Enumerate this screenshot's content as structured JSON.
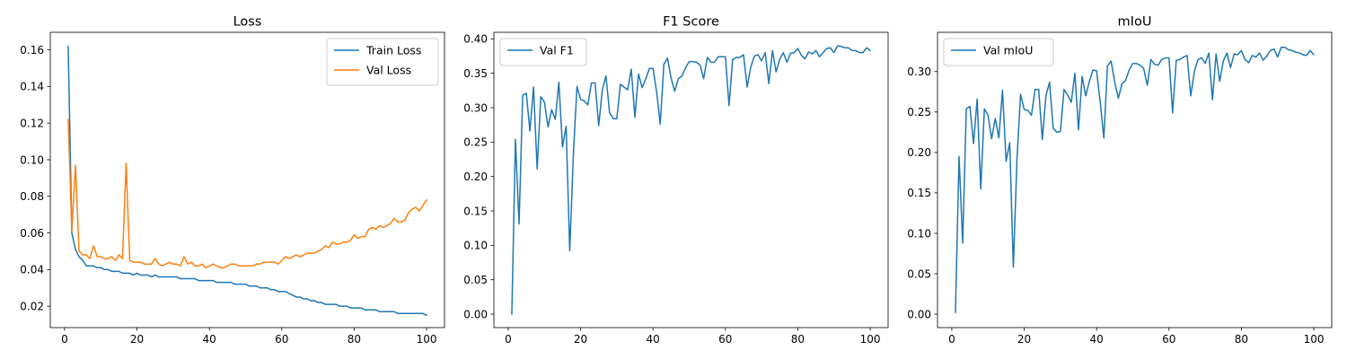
{
  "chart_data": [
    {
      "type": "line",
      "title": "Loss",
      "xlabel": "",
      "ylabel": "",
      "xlim": [
        -3.95,
        104.95
      ],
      "ylim": [
        0.0083,
        0.1696
      ],
      "xticks": [
        0,
        20,
        40,
        60,
        80,
        100
      ],
      "yticks": [
        0.02,
        0.04,
        0.06,
        0.08,
        0.1,
        0.12,
        0.14,
        0.16
      ],
      "ytick_labels": [
        "0.02",
        "0.04",
        "0.06",
        "0.08",
        "0.10",
        "0.12",
        "0.14",
        "0.16"
      ],
      "grid": false,
      "legend": "top-right",
      "series": [
        {
          "name": "Train Loss",
          "color": "#1f77b4",
          "x": [
            1,
            2,
            3,
            4,
            5,
            6,
            7,
            8,
            9,
            10,
            11,
            12,
            13,
            14,
            15,
            16,
            17,
            18,
            19,
            20,
            21,
            22,
            23,
            24,
            25,
            26,
            27,
            28,
            29,
            30,
            31,
            32,
            33,
            34,
            35,
            36,
            37,
            38,
            39,
            40,
            41,
            42,
            43,
            44,
            45,
            46,
            47,
            48,
            49,
            50,
            51,
            52,
            53,
            54,
            55,
            56,
            57,
            58,
            59,
            60,
            61,
            62,
            63,
            64,
            65,
            66,
            67,
            68,
            69,
            70,
            71,
            72,
            73,
            74,
            75,
            76,
            77,
            78,
            79,
            80,
            81,
            82,
            83,
            84,
            85,
            86,
            87,
            88,
            89,
            90,
            91,
            92,
            93,
            94,
            95,
            96,
            97,
            98,
            99,
            100
          ],
          "values": [
            0.162,
            0.06,
            0.051,
            0.047,
            0.045,
            0.042,
            0.042,
            0.042,
            0.041,
            0.041,
            0.04,
            0.04,
            0.039,
            0.039,
            0.039,
            0.038,
            0.038,
            0.038,
            0.037,
            0.038,
            0.037,
            0.037,
            0.037,
            0.036,
            0.037,
            0.036,
            0.036,
            0.036,
            0.036,
            0.036,
            0.036,
            0.035,
            0.035,
            0.035,
            0.035,
            0.035,
            0.034,
            0.034,
            0.034,
            0.034,
            0.034,
            0.033,
            0.033,
            0.033,
            0.033,
            0.033,
            0.032,
            0.032,
            0.032,
            0.032,
            0.031,
            0.031,
            0.031,
            0.03,
            0.03,
            0.03,
            0.029,
            0.029,
            0.028,
            0.028,
            0.028,
            0.027,
            0.026,
            0.025,
            0.025,
            0.024,
            0.024,
            0.023,
            0.023,
            0.022,
            0.022,
            0.021,
            0.021,
            0.021,
            0.021,
            0.02,
            0.02,
            0.02,
            0.019,
            0.019,
            0.019,
            0.019,
            0.018,
            0.018,
            0.018,
            0.018,
            0.017,
            0.017,
            0.017,
            0.017,
            0.017,
            0.016,
            0.016,
            0.016,
            0.016,
            0.016,
            0.016,
            0.016,
            0.016,
            0.015
          ]
        },
        {
          "name": "Val Loss",
          "color": "#ff7f0e",
          "x": [
            1,
            2,
            3,
            4,
            5,
            6,
            7,
            8,
            9,
            10,
            11,
            12,
            13,
            14,
            15,
            16,
            17,
            18,
            19,
            20,
            21,
            22,
            23,
            24,
            25,
            26,
            27,
            28,
            29,
            30,
            31,
            32,
            33,
            34,
            35,
            36,
            37,
            38,
            39,
            40,
            41,
            42,
            43,
            44,
            45,
            46,
            47,
            48,
            49,
            50,
            51,
            52,
            53,
            54,
            55,
            56,
            57,
            58,
            59,
            60,
            61,
            62,
            63,
            64,
            65,
            66,
            67,
            68,
            69,
            70,
            71,
            72,
            73,
            74,
            75,
            76,
            77,
            78,
            79,
            80,
            81,
            82,
            83,
            84,
            85,
            86,
            87,
            88,
            89,
            90,
            91,
            92,
            93,
            94,
            95,
            96,
            97,
            98,
            99,
            100
          ],
          "values": [
            0.122,
            0.061,
            0.097,
            0.05,
            0.048,
            0.048,
            0.046,
            0.053,
            0.047,
            0.047,
            0.046,
            0.046,
            0.047,
            0.045,
            0.048,
            0.046,
            0.098,
            0.045,
            0.044,
            0.044,
            0.044,
            0.043,
            0.043,
            0.043,
            0.046,
            0.043,
            0.042,
            0.043,
            0.044,
            0.043,
            0.043,
            0.042,
            0.047,
            0.043,
            0.044,
            0.042,
            0.042,
            0.043,
            0.041,
            0.042,
            0.043,
            0.042,
            0.041,
            0.041,
            0.042,
            0.043,
            0.043,
            0.042,
            0.042,
            0.042,
            0.042,
            0.042,
            0.043,
            0.043,
            0.044,
            0.044,
            0.044,
            0.044,
            0.043,
            0.045,
            0.047,
            0.046,
            0.047,
            0.048,
            0.047,
            0.048,
            0.049,
            0.049,
            0.049,
            0.05,
            0.051,
            0.053,
            0.052,
            0.055,
            0.054,
            0.054,
            0.055,
            0.055,
            0.056,
            0.059,
            0.057,
            0.058,
            0.058,
            0.062,
            0.063,
            0.062,
            0.064,
            0.063,
            0.064,
            0.065,
            0.068,
            0.066,
            0.066,
            0.067,
            0.071,
            0.073,
            0.074,
            0.072,
            0.075,
            0.078
          ]
        }
      ]
    },
    {
      "type": "line",
      "title": "F1 Score",
      "xlabel": "",
      "ylabel": "",
      "xlim": [
        -3.95,
        104.95
      ],
      "ylim": [
        -0.0195,
        0.4095
      ],
      "xticks": [
        0,
        20,
        40,
        60,
        80,
        100
      ],
      "yticks": [
        0.0,
        0.05,
        0.1,
        0.15,
        0.2,
        0.25,
        0.3,
        0.35,
        0.4
      ],
      "ytick_labels": [
        "0.00",
        "0.05",
        "0.10",
        "0.15",
        "0.20",
        "0.25",
        "0.30",
        "0.35",
        "0.40"
      ],
      "grid": false,
      "legend": "top-left",
      "series": [
        {
          "name": "Val F1",
          "color": "#1f77b4",
          "x": [
            1,
            2,
            3,
            4,
            5,
            6,
            7,
            8,
            9,
            10,
            11,
            12,
            13,
            14,
            15,
            16,
            17,
            18,
            19,
            20,
            21,
            22,
            23,
            24,
            25,
            26,
            27,
            28,
            29,
            30,
            31,
            32,
            33,
            34,
            35,
            36,
            37,
            38,
            39,
            40,
            41,
            42,
            43,
            44,
            45,
            46,
            47,
            48,
            49,
            50,
            51,
            52,
            53,
            54,
            55,
            56,
            57,
            58,
            59,
            60,
            61,
            62,
            63,
            64,
            65,
            66,
            67,
            68,
            69,
            70,
            71,
            72,
            73,
            74,
            75,
            76,
            77,
            78,
            79,
            80,
            81,
            82,
            83,
            84,
            85,
            86,
            87,
            88,
            89,
            90,
            91,
            92,
            93,
            94,
            95,
            96,
            97,
            98,
            99,
            100
          ],
          "values": [
            0.0,
            0.254,
            0.131,
            0.318,
            0.321,
            0.266,
            0.33,
            0.211,
            0.316,
            0.308,
            0.272,
            0.297,
            0.283,
            0.337,
            0.243,
            0.273,
            0.092,
            0.232,
            0.331,
            0.312,
            0.31,
            0.304,
            0.336,
            0.336,
            0.274,
            0.326,
            0.346,
            0.293,
            0.284,
            0.284,
            0.334,
            0.33,
            0.326,
            0.356,
            0.286,
            0.349,
            0.329,
            0.342,
            0.357,
            0.357,
            0.323,
            0.276,
            0.363,
            0.372,
            0.343,
            0.324,
            0.342,
            0.346,
            0.358,
            0.367,
            0.367,
            0.366,
            0.362,
            0.342,
            0.373,
            0.366,
            0.366,
            0.374,
            0.374,
            0.374,
            0.303,
            0.37,
            0.373,
            0.373,
            0.377,
            0.33,
            0.359,
            0.375,
            0.377,
            0.368,
            0.38,
            0.335,
            0.383,
            0.352,
            0.37,
            0.38,
            0.366,
            0.379,
            0.38,
            0.386,
            0.376,
            0.371,
            0.381,
            0.378,
            0.383,
            0.374,
            0.38,
            0.386,
            0.387,
            0.38,
            0.39,
            0.389,
            0.387,
            0.387,
            0.383,
            0.383,
            0.38,
            0.38,
            0.387,
            0.383
          ]
        }
      ]
    },
    {
      "type": "line",
      "title": "mIoU",
      "xlabel": "",
      "ylabel": "",
      "xlim": [
        -3.95,
        104.95
      ],
      "ylim": [
        -0.0166,
        0.3486
      ],
      "xticks": [
        0,
        20,
        40,
        60,
        80,
        100
      ],
      "yticks": [
        0.0,
        0.05,
        0.1,
        0.15,
        0.2,
        0.25,
        0.3
      ],
      "ytick_labels": [
        "0.00",
        "0.05",
        "0.10",
        "0.15",
        "0.20",
        "0.25",
        "0.30"
      ],
      "grid": false,
      "legend": "top-left",
      "series": [
        {
          "name": "Val mIoU",
          "color": "#1f77b4",
          "x": [
            1,
            2,
            3,
            4,
            5,
            6,
            7,
            8,
            9,
            10,
            11,
            12,
            13,
            14,
            15,
            16,
            17,
            18,
            19,
            20,
            21,
            22,
            23,
            24,
            25,
            26,
            27,
            28,
            29,
            30,
            31,
            32,
            33,
            34,
            35,
            36,
            37,
            38,
            39,
            40,
            41,
            42,
            43,
            44,
            45,
            46,
            47,
            48,
            49,
            50,
            51,
            52,
            53,
            54,
            55,
            56,
            57,
            58,
            59,
            60,
            61,
            62,
            63,
            64,
            65,
            66,
            67,
            68,
            69,
            70,
            71,
            72,
            73,
            74,
            75,
            76,
            77,
            78,
            79,
            80,
            81,
            82,
            83,
            84,
            85,
            86,
            87,
            88,
            89,
            90,
            91,
            92,
            93,
            94,
            95,
            96,
            97,
            98,
            99,
            100
          ],
          "values": [
            0.002,
            0.195,
            0.088,
            0.254,
            0.257,
            0.211,
            0.266,
            0.155,
            0.254,
            0.246,
            0.217,
            0.242,
            0.218,
            0.277,
            0.189,
            0.212,
            0.058,
            0.192,
            0.272,
            0.253,
            0.252,
            0.246,
            0.278,
            0.278,
            0.216,
            0.27,
            0.287,
            0.23,
            0.225,
            0.226,
            0.278,
            0.271,
            0.262,
            0.298,
            0.228,
            0.294,
            0.27,
            0.288,
            0.302,
            0.301,
            0.262,
            0.218,
            0.307,
            0.313,
            0.287,
            0.267,
            0.285,
            0.289,
            0.302,
            0.31,
            0.31,
            0.308,
            0.304,
            0.283,
            0.315,
            0.309,
            0.308,
            0.315,
            0.317,
            0.317,
            0.249,
            0.314,
            0.315,
            0.318,
            0.32,
            0.27,
            0.3,
            0.315,
            0.317,
            0.31,
            0.323,
            0.265,
            0.322,
            0.288,
            0.313,
            0.323,
            0.305,
            0.322,
            0.321,
            0.326,
            0.315,
            0.311,
            0.32,
            0.318,
            0.323,
            0.314,
            0.319,
            0.326,
            0.328,
            0.318,
            0.33,
            0.33,
            0.327,
            0.326,
            0.324,
            0.323,
            0.321,
            0.32,
            0.326,
            0.321
          ]
        }
      ]
    }
  ]
}
